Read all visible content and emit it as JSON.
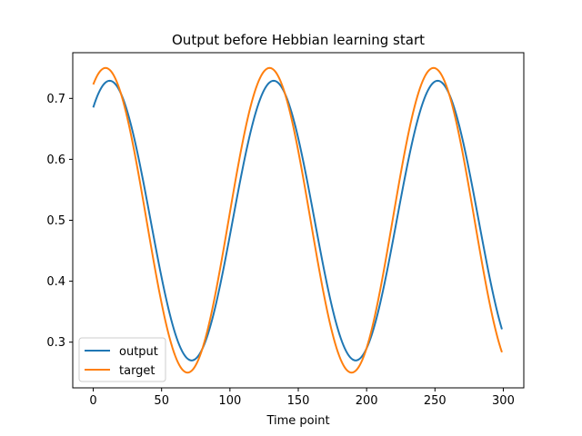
{
  "chart_data": {
    "type": "line",
    "title": "Output before Hebbian learning start",
    "xlabel": "Time point",
    "ylabel": "",
    "xlim": [
      -15,
      315
    ],
    "ylim": [
      0.225,
      0.775
    ],
    "x_ticks": [
      0,
      50,
      100,
      150,
      200,
      250,
      300
    ],
    "y_ticks": [
      0.3,
      0.4,
      0.5,
      0.6,
      0.7
    ],
    "y_tick_labels": [
      "0.3",
      "0.4",
      "0.5",
      "0.6",
      "0.7"
    ],
    "grid": false,
    "legend": "lower-left",
    "x_range": [
      0,
      299
    ],
    "series": [
      {
        "name": "output",
        "color": "#1f77b4",
        "key_points": [
          [
            0,
            0.687
          ],
          [
            12,
            0.729
          ],
          [
            72,
            0.27
          ],
          [
            132,
            0.729
          ],
          [
            192,
            0.27
          ],
          [
            252,
            0.729
          ],
          [
            299,
            0.309
          ]
        ],
        "amplitude": 0.2295,
        "offset": 0.4995,
        "period": 120,
        "peak_at": 12
      },
      {
        "name": "target",
        "color": "#ff7f0e",
        "key_points": [
          [
            0,
            0.724
          ],
          [
            9,
            0.75
          ],
          [
            69,
            0.25
          ],
          [
            129,
            0.75
          ],
          [
            189,
            0.25
          ],
          [
            249,
            0.75
          ],
          [
            299,
            0.283
          ]
        ],
        "amplitude": 0.25,
        "offset": 0.5,
        "period": 120,
        "peak_at": 9
      }
    ]
  }
}
